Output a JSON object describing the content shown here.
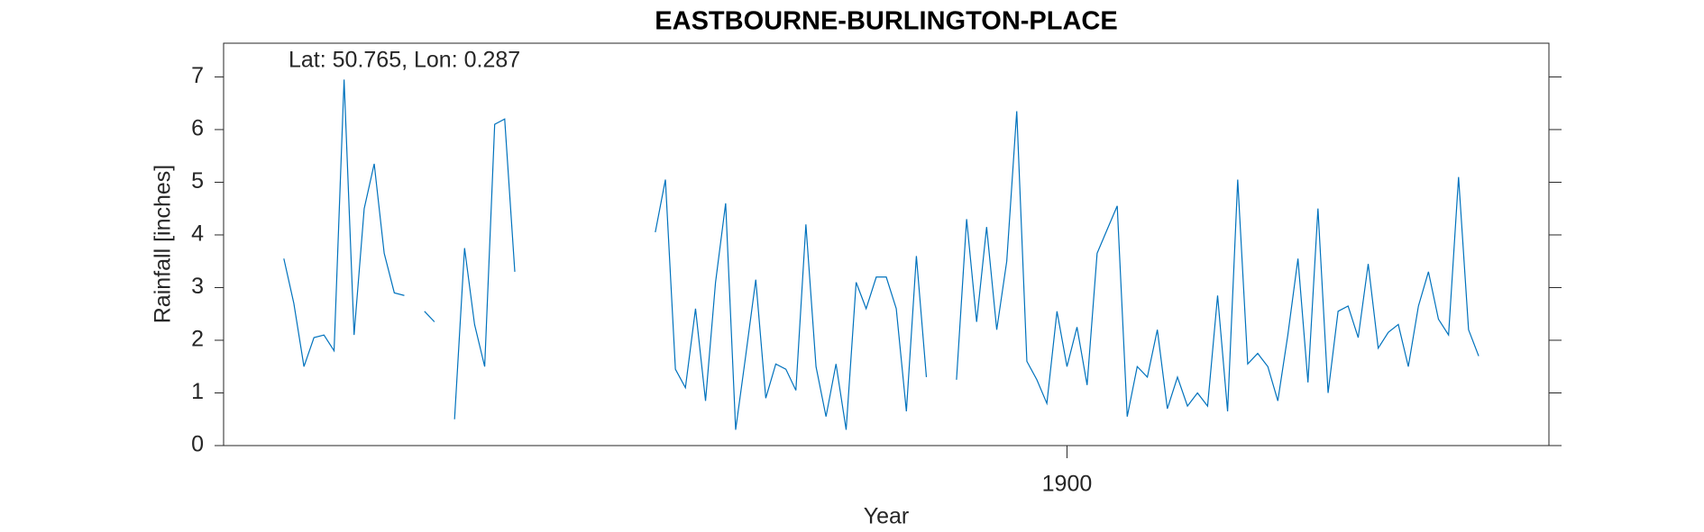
{
  "chart_data": {
    "type": "line",
    "title": "EASTBOURNE-BURLINGTON-PLACE",
    "annotation": "Lat: 50.765, Lon: 0.287",
    "xlabel": "Year",
    "ylabel": "Rainfall [inches]",
    "xlim": [
      1893,
      1904
    ],
    "xticks": [
      1900
    ],
    "ylim": [
      0,
      7.64
    ],
    "yticks": [
      0,
      1,
      2,
      3,
      4,
      5,
      6,
      7
    ],
    "grid": false,
    "x": [
      1893.5,
      1893.583,
      1893.667,
      1893.75,
      1893.833,
      1893.917,
      1894,
      1894.083,
      1894.167,
      1894.25,
      1894.333,
      1894.417,
      1894.5,
      1894.583,
      1894.667,
      1894.75,
      1894.833,
      1894.917,
      1895,
      1895.083,
      1895.167,
      1895.25,
      1895.333,
      1895.417,
      1895.5,
      1895.583,
      1895.667,
      1895.75,
      1895.833,
      1895.917,
      1896,
      1896.083,
      1896.167,
      1896.25,
      1896.333,
      1896.417,
      1896.5,
      1896.583,
      1896.667,
      1896.75,
      1896.833,
      1896.917,
      1897,
      1897.083,
      1897.167,
      1897.25,
      1897.333,
      1897.417,
      1897.5,
      1897.583,
      1897.667,
      1897.75,
      1897.833,
      1897.917,
      1898,
      1898.083,
      1898.167,
      1898.25,
      1898.333,
      1898.417,
      1898.5,
      1898.583,
      1898.667,
      1898.75,
      1898.833,
      1898.917,
      1899,
      1899.083,
      1899.167,
      1899.25,
      1899.333,
      1899.417,
      1899.5,
      1899.583,
      1899.667,
      1899.75,
      1899.833,
      1899.917,
      1900,
      1900.083,
      1900.167,
      1900.25,
      1900.333,
      1900.417,
      1900.5,
      1900.583,
      1900.667,
      1900.75,
      1900.833,
      1900.917,
      1901,
      1901.083,
      1901.167,
      1901.25,
      1901.333,
      1901.417,
      1901.5,
      1901.583,
      1901.667,
      1901.75,
      1901.833,
      1901.917,
      1902,
      1902.083,
      1902.167,
      1902.25,
      1902.333,
      1902.417,
      1902.5,
      1902.583,
      1902.667,
      1902.75,
      1902.833,
      1902.917,
      1903,
      1903.083,
      1903.167,
      1903.25,
      1903.333,
      1903.417
    ],
    "series": [
      {
        "color": "#0072bd",
        "values": [
          3.55,
          2.7,
          1.5,
          2.05,
          2.1,
          1.8,
          6.95,
          2.1,
          4.5,
          5.35,
          3.65,
          2.9,
          2.85,
          null,
          2.55,
          2.35,
          null,
          0.5,
          3.75,
          2.3,
          1.5,
          6.1,
          6.2,
          3.3,
          null,
          null,
          null,
          null,
          null,
          null,
          null,
          null,
          null,
          null,
          null,
          null,
          null,
          4.05,
          5.05,
          1.45,
          1.1,
          2.6,
          0.85,
          3.1,
          4.6,
          0.3,
          1.7,
          3.15,
          0.9,
          1.55,
          1.45,
          1.05,
          4.2,
          1.5,
          0.55,
          1.55,
          0.3,
          3.1,
          2.6,
          3.2,
          3.2,
          2.6,
          0.65,
          3.6,
          1.3,
          null,
          null,
          1.25,
          4.3,
          2.35,
          4.15,
          2.2,
          3.5,
          6.35,
          1.6,
          1.25,
          0.8,
          2.55,
          1.5,
          2.25,
          1.15,
          3.65,
          4.1,
          4.55,
          0.55,
          1.5,
          1.3,
          2.2,
          0.7,
          1.3,
          0.75,
          1.0,
          0.75,
          2.85,
          0.65,
          5.05,
          1.55,
          1.75,
          1.5,
          0.85,
          2.1,
          3.55,
          1.2,
          4.5,
          1.0,
          2.55,
          2.65,
          2.05,
          3.45,
          1.85,
          2.15,
          2.3,
          1.5,
          2.65,
          3.3,
          2.4,
          2.1,
          5.1,
          2.2,
          1.7
        ]
      }
    ]
  }
}
